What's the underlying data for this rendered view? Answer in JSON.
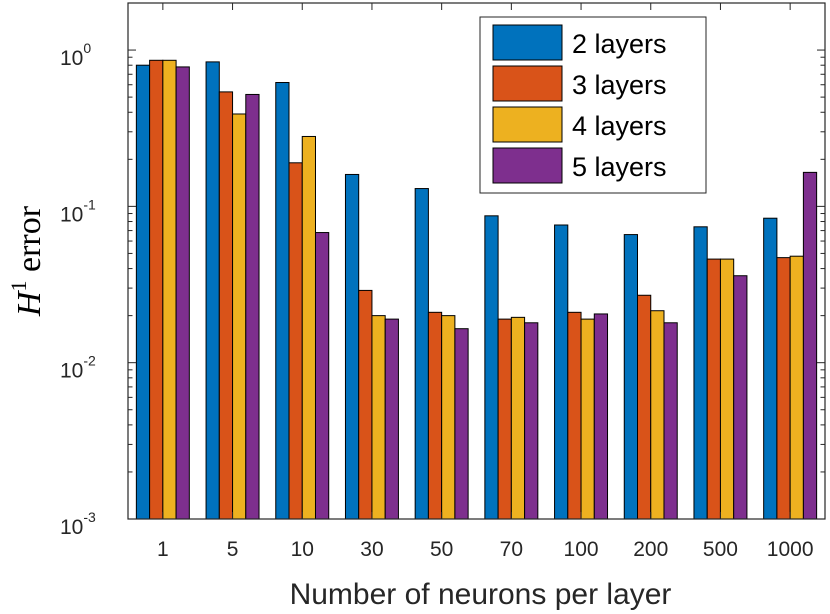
{
  "chart_data": {
    "type": "bar",
    "xlabel": "Number of neurons per layer",
    "ylabel": "H",
    "ylabel_superscript": "1",
    "ylabel_suffix": "error",
    "yscale": "log",
    "ylim": [
      0.001,
      2
    ],
    "categories": [
      "1",
      "5",
      "10",
      "30",
      "50",
      "70",
      "100",
      "200",
      "500",
      "1000"
    ],
    "yticks": [
      {
        "value": 1,
        "base": "10",
        "exp": "0"
      },
      {
        "value": 0.1,
        "base": "10",
        "exp": "-1"
      },
      {
        "value": 0.01,
        "base": "10",
        "exp": "-2"
      },
      {
        "value": 0.001,
        "base": "10",
        "exp": "-3"
      }
    ],
    "legend_position": "top-right",
    "series": [
      {
        "name": "2 layers",
        "color": "#0072BD",
        "values": [
          0.8,
          0.84,
          0.62,
          0.16,
          0.13,
          0.087,
          0.076,
          0.066,
          0.074,
          0.084
        ]
      },
      {
        "name": "3 layers",
        "color": "#D95319",
        "values": [
          0.86,
          0.54,
          0.19,
          0.029,
          0.021,
          0.019,
          0.021,
          0.027,
          0.046,
          0.047
        ]
      },
      {
        "name": "4 layers",
        "color": "#EDB120",
        "values": [
          0.86,
          0.39,
          0.28,
          0.02,
          0.02,
          0.0195,
          0.019,
          0.0215,
          0.046,
          0.048
        ]
      },
      {
        "name": "5 layers",
        "color": "#7E2F8E",
        "values": [
          0.78,
          0.52,
          0.068,
          0.019,
          0.0165,
          0.018,
          0.0205,
          0.018,
          0.036,
          0.165
        ]
      }
    ]
  }
}
